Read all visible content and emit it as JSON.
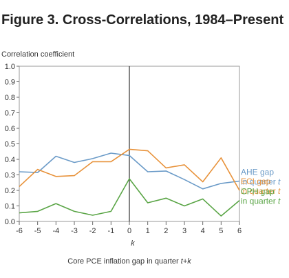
{
  "chart_data": {
    "type": "line",
    "title": "Figure 3. Cross-Correlations, 1984–Present",
    "ylabel": "Correlation coefficient",
    "xlabel": "k",
    "caption_prefix": "Core PCE inflation gap in quarter ",
    "caption_var": "t+k",
    "x": [
      -6,
      -5,
      -4,
      -3,
      -2,
      -1,
      0,
      1,
      2,
      3,
      4,
      5,
      6
    ],
    "x_tick_labels": [
      "-6",
      "-5",
      "-4",
      "-3",
      "-2",
      "-1",
      "0",
      "1",
      "2",
      "3",
      "4",
      "5",
      "6"
    ],
    "ylim": [
      0,
      1
    ],
    "y_ticks": [
      0,
      0.1,
      0.2,
      0.3,
      0.4,
      0.5,
      0.6,
      0.7,
      0.8,
      0.9,
      1.0
    ],
    "y_tick_labels": [
      "0.0",
      "0.1",
      "0.2",
      "0.3",
      "0.4",
      "0.5",
      "0.6",
      "0.7",
      "0.8",
      "0.9",
      "1.0"
    ],
    "grid": false,
    "series": [
      {
        "name_line1": "AHE gap",
        "name_line2_prefix": "in quarter ",
        "name_line2_var": "t",
        "color": "#6b9bc8",
        "values": [
          0.32,
          0.315,
          0.42,
          0.38,
          0.405,
          0.44,
          0.425,
          0.32,
          0.325,
          0.27,
          0.21,
          0.245,
          0.26
        ]
      },
      {
        "name_line1": "ECI gap",
        "name_line2_prefix": "in quarter ",
        "name_line2_var": "t",
        "color": "#e8923a",
        "values": [
          0.225,
          0.335,
          0.29,
          0.295,
          0.385,
          0.385,
          0.465,
          0.455,
          0.345,
          0.365,
          0.255,
          0.41,
          0.2
        ]
      },
      {
        "name_line1": "CPH gap",
        "name_line2_prefix": "in quarter ",
        "name_line2_var": "t",
        "color": "#5aa546",
        "values": [
          0.055,
          0.065,
          0.115,
          0.065,
          0.04,
          0.065,
          0.275,
          0.12,
          0.15,
          0.1,
          0.145,
          0.035,
          0.135
        ]
      }
    ]
  }
}
